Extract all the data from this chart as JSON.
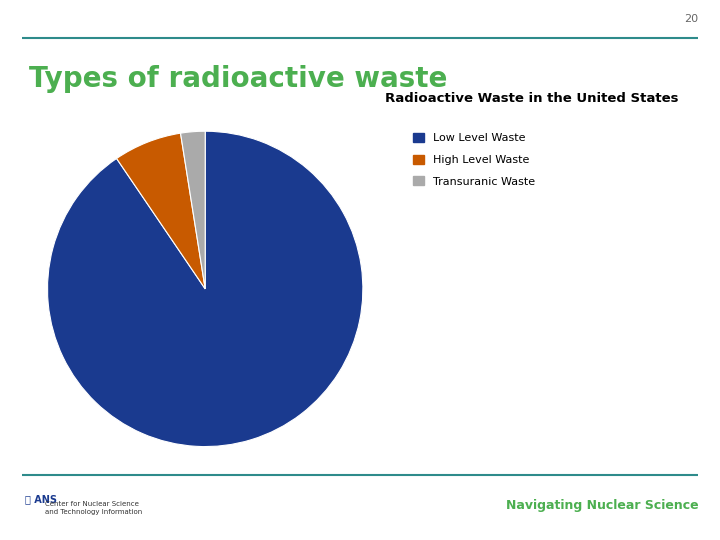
{
  "title": "Types of radioactive waste",
  "slide_number": "20",
  "pie_title": "Radioactive Waste in the United States",
  "labels": [
    "Low Level Waste",
    "High Level Waste",
    "Transuranic Waste"
  ],
  "values": [
    90.5,
    7.0,
    2.5
  ],
  "colors": [
    "#1A3A8F",
    "#C85A00",
    "#AAAAAA"
  ],
  "title_color": "#4CAF50",
  "pie_title_color": "#000000",
  "background_color": "#FFFFFF",
  "slide_num_color": "#666666",
  "line_color": "#2E8B8B",
  "nav_text": "Navigating Nuclear Science",
  "nav_text_color": "#4CAF50",
  "legend_fontsize": 8,
  "pie_title_fontsize": 9.5,
  "main_title_fontsize": 20
}
